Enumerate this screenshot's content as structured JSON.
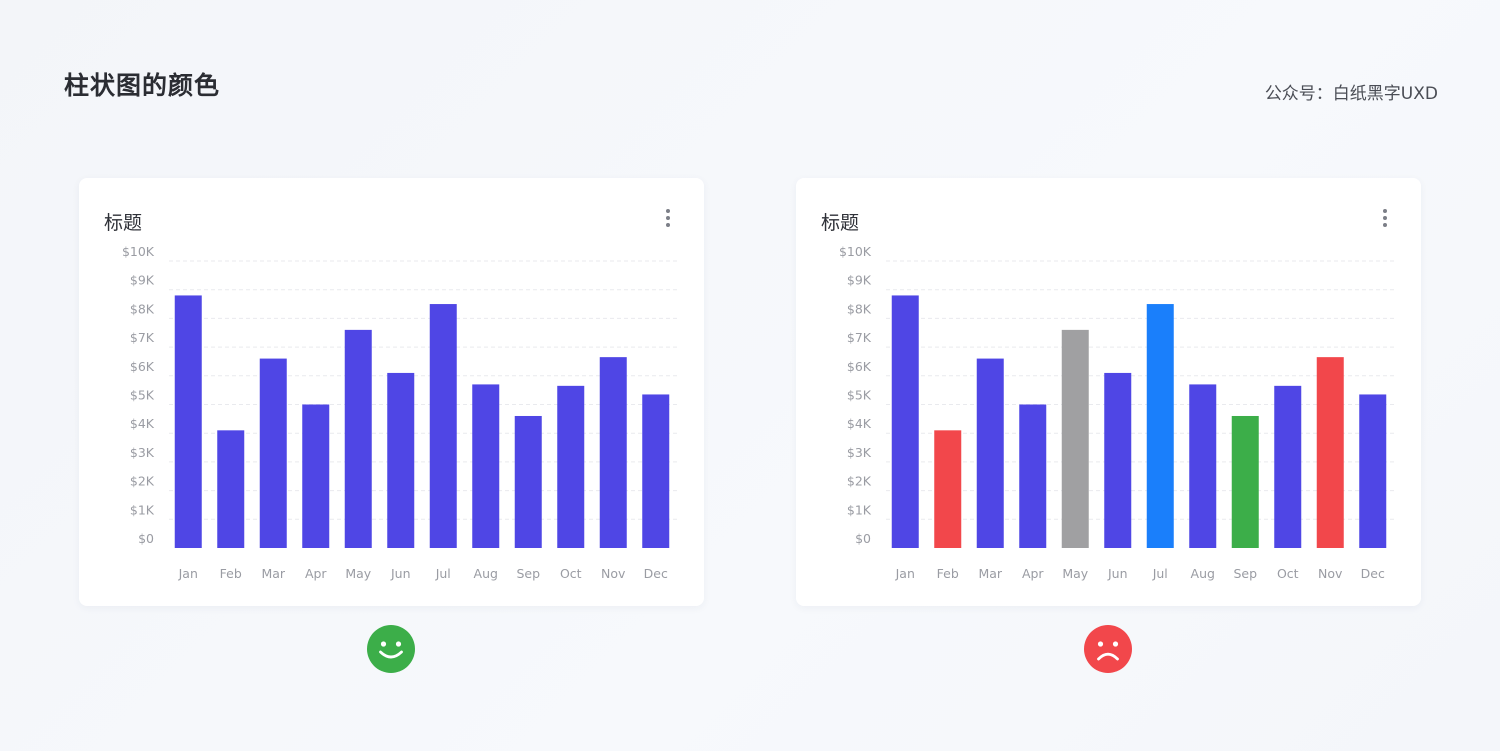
{
  "page": {
    "title": "柱状图的颜色",
    "source": "公众号：白纸黑字UXD"
  },
  "colors": {
    "primary_bar": "#4f46e5",
    "red": "#f2474b",
    "gray": "#a0a0a2",
    "blue": "#1a7ffb",
    "green": "#3cae49",
    "happy_face": "#3cae49",
    "sad_face": "#f2474b"
  },
  "cards": [
    {
      "title": "标题",
      "icon": "more-vertical-icon",
      "verdict_icon": "smiley-happy-icon"
    },
    {
      "title": "标题",
      "icon": "more-vertical-icon",
      "verdict_icon": "smiley-sad-icon"
    }
  ],
  "chart_data": [
    {
      "type": "bar",
      "title": "标题",
      "categories": [
        "Jan",
        "Feb",
        "Mar",
        "Apr",
        "May",
        "Jun",
        "Jul",
        "Aug",
        "Sep",
        "Oct",
        "Nov",
        "Dec"
      ],
      "values": [
        8800,
        4100,
        6600,
        5000,
        7600,
        6100,
        8500,
        5700,
        4600,
        5650,
        6650,
        5350
      ],
      "bar_colors": [
        "#4f46e5",
        "#4f46e5",
        "#4f46e5",
        "#4f46e5",
        "#4f46e5",
        "#4f46e5",
        "#4f46e5",
        "#4f46e5",
        "#4f46e5",
        "#4f46e5",
        "#4f46e5",
        "#4f46e5"
      ],
      "yticks": [
        "$0",
        "$1K",
        "$2K",
        "$3K",
        "$4K",
        "$5K",
        "$6K",
        "$7K",
        "$8K",
        "$9K",
        "$10K"
      ],
      "ylim": [
        0,
        10000
      ],
      "grid": true,
      "gridline_style": "dashed"
    },
    {
      "type": "bar",
      "title": "标题",
      "categories": [
        "Jan",
        "Feb",
        "Mar",
        "Apr",
        "May",
        "Jun",
        "Jul",
        "Aug",
        "Sep",
        "Oct",
        "Nov",
        "Dec"
      ],
      "values": [
        8800,
        4100,
        6600,
        5000,
        7600,
        6100,
        8500,
        5700,
        4600,
        5650,
        6650,
        5350
      ],
      "bar_colors": [
        "#4f46e5",
        "#f2474b",
        "#4f46e5",
        "#4f46e5",
        "#a0a0a2",
        "#4f46e5",
        "#1a7ffb",
        "#4f46e5",
        "#3cae49",
        "#4f46e5",
        "#f2474b",
        "#4f46e5"
      ],
      "yticks": [
        "$0",
        "$1K",
        "$2K",
        "$3K",
        "$4K",
        "$5K",
        "$6K",
        "$7K",
        "$8K",
        "$9K",
        "$10K"
      ],
      "ylim": [
        0,
        10000
      ],
      "grid": true,
      "gridline_style": "dashed"
    }
  ]
}
